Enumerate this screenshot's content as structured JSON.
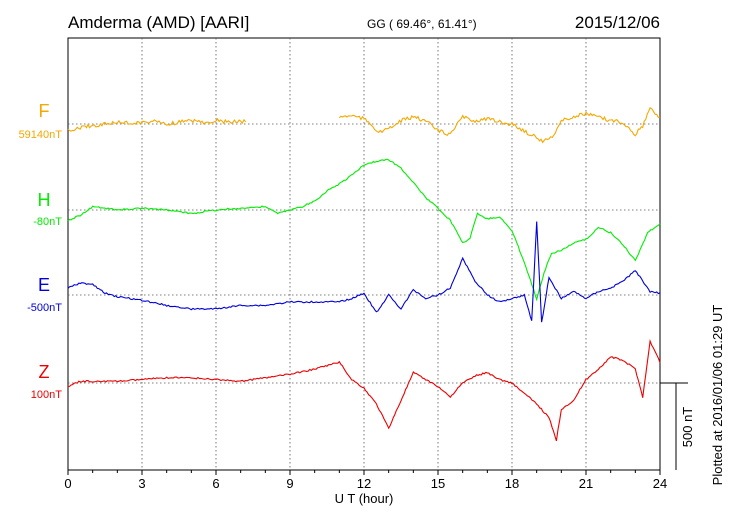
{
  "header": {
    "station": "Amderma (AMD)  [AARI]",
    "coords": "GG ( 69.46°,  61.41°)",
    "date": "2015/12/06"
  },
  "plotted_note": "Plotted at 2016/01/06 01:29 UT",
  "chart_data": {
    "type": "line",
    "xlabel": "U T (hour)",
    "xlim": [
      0,
      24
    ],
    "xticks": [
      "0",
      "3",
      "6",
      "9",
      "12",
      "15",
      "18",
      "21",
      "24"
    ],
    "scale_bar_label": "500 nT",
    "scale_bar_nT": 500,
    "series": [
      {
        "name": "F",
        "baseline_label": "59140nT",
        "baseline_nT": 59140,
        "color": "#f5a800",
        "x": [
          0,
          0.5,
          1,
          1.5,
          2,
          2.5,
          3,
          3.5,
          4,
          4.5,
          5,
          5.5,
          6,
          6.5,
          7,
          7.2,
          null,
          11,
          11.5,
          12,
          12.3,
          12.6,
          13,
          13.5,
          14,
          14.5,
          15,
          15.5,
          16,
          16.5,
          17,
          17.5,
          18,
          18.5,
          19,
          19.3,
          19.7,
          20,
          20.5,
          21,
          21.5,
          22,
          22.5,
          23,
          23.3,
          23.6,
          24
        ],
        "y": [
          -40,
          -20,
          -10,
          0,
          10,
          5,
          10,
          15,
          0,
          10,
          20,
          10,
          20,
          10,
          15,
          15,
          null,
          40,
          50,
          30,
          0,
          -50,
          -30,
          20,
          40,
          20,
          -40,
          -60,
          40,
          20,
          30,
          10,
          0,
          -40,
          -80,
          -100,
          -60,
          20,
          40,
          60,
          40,
          20,
          10,
          -60,
          -10,
          90,
          30
        ]
      },
      {
        "name": "H",
        "baseline_label": "-80nT",
        "baseline_nT": -80,
        "color": "#00ee00",
        "x": [
          0,
          0.5,
          1,
          1.5,
          2,
          3,
          4,
          5,
          6,
          7,
          8,
          8.5,
          9,
          9.5,
          10,
          10.5,
          11,
          11.5,
          12,
          12.5,
          13,
          13.5,
          14,
          14.5,
          15,
          15.5,
          16,
          16.3,
          16.6,
          17,
          17.5,
          18,
          18.5,
          19,
          19.3,
          19.6,
          20,
          20.5,
          21,
          21.5,
          22,
          22.5,
          23,
          23.5,
          24
        ],
        "y": [
          -60,
          -30,
          20,
          10,
          0,
          10,
          0,
          -20,
          0,
          10,
          20,
          -20,
          0,
          20,
          50,
          110,
          150,
          200,
          260,
          280,
          290,
          240,
          160,
          70,
          10,
          -60,
          -190,
          -160,
          -20,
          -50,
          -40,
          -120,
          -300,
          -510,
          -360,
          -250,
          -230,
          -190,
          -170,
          -100,
          -130,
          -200,
          -290,
          -130,
          -80
        ]
      },
      {
        "name": "E",
        "baseline_label": "-500nT",
        "baseline_nT": -500,
        "color": "#0000dd",
        "x": [
          0,
          0.5,
          1,
          1.5,
          2,
          3,
          4,
          5,
          6,
          7,
          8,
          9,
          10,
          11,
          11.5,
          12,
          12.5,
          13,
          13.5,
          14,
          14.5,
          15,
          15.5,
          16,
          16.5,
          17,
          17.5,
          18,
          18.5,
          18.8,
          19,
          19.2,
          19.5,
          20,
          20.5,
          21,
          21.5,
          22,
          22.5,
          23,
          23.3,
          23.6,
          24
        ],
        "y": [
          40,
          70,
          60,
          10,
          -10,
          -30,
          -60,
          -80,
          -80,
          -60,
          -60,
          -40,
          -40,
          -40,
          -20,
          10,
          -100,
          0,
          -80,
          30,
          -20,
          0,
          40,
          210,
          80,
          0,
          -40,
          -20,
          0,
          -150,
          420,
          -160,
          100,
          -20,
          20,
          -20,
          20,
          40,
          80,
          140,
          80,
          20,
          10
        ]
      },
      {
        "name": "Z",
        "baseline_label": "100nT",
        "baseline_nT": 100,
        "color": "#ee0000",
        "x": [
          0,
          0.5,
          1,
          2,
          3,
          4,
          5,
          6,
          7,
          8,
          9,
          10,
          10.5,
          11,
          11.5,
          12,
          12.5,
          13,
          13.5,
          14,
          14.5,
          15,
          15.5,
          16,
          16.5,
          17,
          17.5,
          18,
          18.5,
          19,
          19.5,
          19.8,
          20,
          20.5,
          21,
          21.5,
          22,
          22.5,
          23,
          23.3,
          23.6,
          24
        ],
        "y": [
          -20,
          10,
          10,
          10,
          20,
          30,
          30,
          20,
          10,
          30,
          50,
          80,
          100,
          120,
          20,
          -30,
          -120,
          -260,
          -100,
          60,
          20,
          -20,
          -80,
          0,
          40,
          60,
          20,
          0,
          -60,
          -120,
          -200,
          -330,
          -150,
          -100,
          20,
          80,
          150,
          130,
          80,
          -80,
          240,
          120
        ]
      }
    ]
  }
}
